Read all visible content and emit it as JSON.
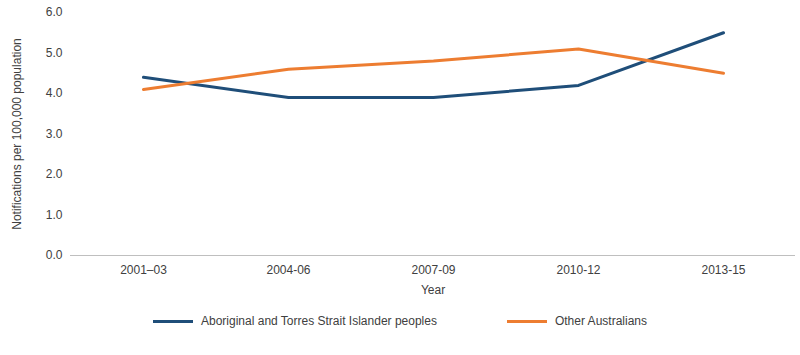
{
  "chart_data": {
    "type": "line",
    "x_label": "Year",
    "y_label": "Notifications per 100,000 population",
    "categories": [
      "2001–03",
      "2004-06",
      "2007-09",
      "2010-12",
      "2013-15"
    ],
    "series": [
      {
        "name": "Aboriginal and Torres Strait Islander peoples",
        "color": "#1F4E79",
        "values": [
          4.4,
          3.9,
          3.9,
          4.2,
          5.5
        ]
      },
      {
        "name": "Other Australians",
        "color": "#ED7D31",
        "values": [
          4.1,
          4.6,
          4.8,
          5.1,
          4.5
        ]
      }
    ],
    "ylim": [
      0,
      6
    ],
    "yticks": [
      {
        "value": 0,
        "label": "0.0"
      },
      {
        "value": 1,
        "label": "1.0"
      },
      {
        "value": 2,
        "label": "2.0"
      },
      {
        "value": 3,
        "label": "3.0"
      },
      {
        "value": 4,
        "label": "4.0"
      },
      {
        "value": 5,
        "label": "5.0"
      },
      {
        "value": 6,
        "label": "6.0"
      }
    ],
    "grid": false,
    "legend": "bottom"
  }
}
